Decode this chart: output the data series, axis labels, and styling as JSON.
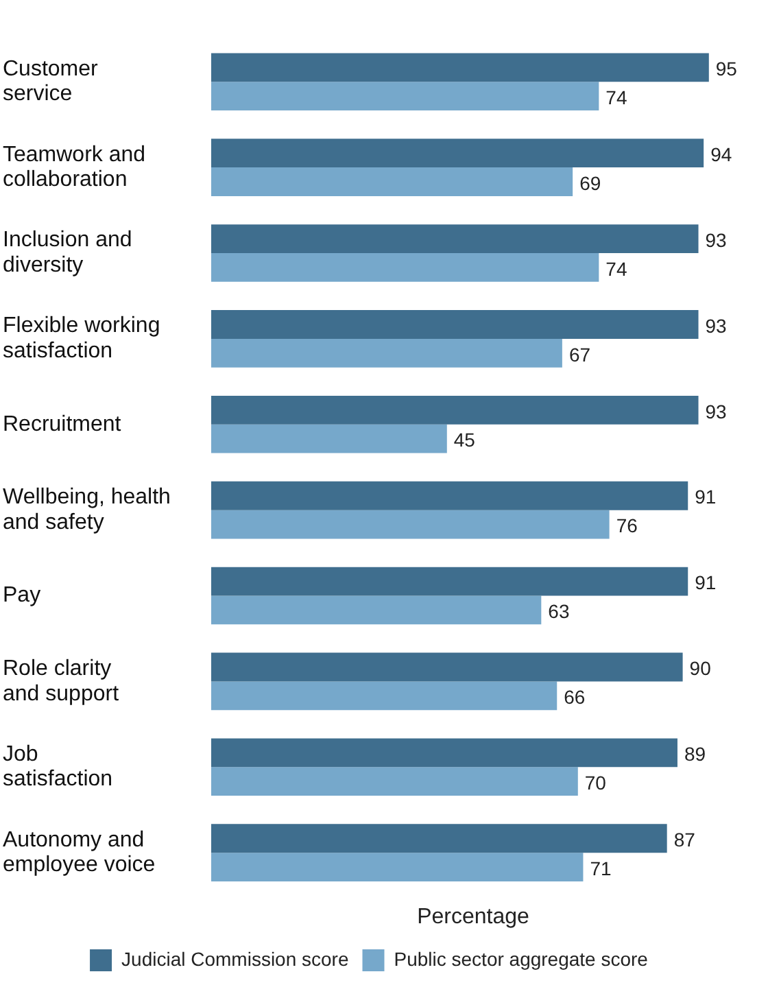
{
  "chart_data": {
    "type": "bar",
    "orientation": "horizontal",
    "xlabel": "Percentage",
    "categories": [
      "Customer\nservice",
      "Teamwork and\ncollaboration",
      "Inclusion and\ndiversity",
      "Flexible working\nsatisfaction",
      "Recruitment",
      "Wellbeing, health\nand safety",
      "Pay",
      "Role clarity\nand support",
      "Job\nsatisfaction",
      "Autonomy and\nemployee voice"
    ],
    "series": [
      {
        "name": "Judicial Commission score",
        "color": "#3f6e8e",
        "values": [
          95,
          94,
          93,
          93,
          93,
          91,
          91,
          90,
          89,
          87
        ]
      },
      {
        "name": "Public sector aggregate score",
        "color": "#76a8cb",
        "values": [
          74,
          69,
          74,
          67,
          45,
          76,
          63,
          66,
          70,
          71
        ]
      }
    ],
    "data_labels": true,
    "grid": false,
    "legend": "bottom",
    "tick_labels": "y"
  }
}
